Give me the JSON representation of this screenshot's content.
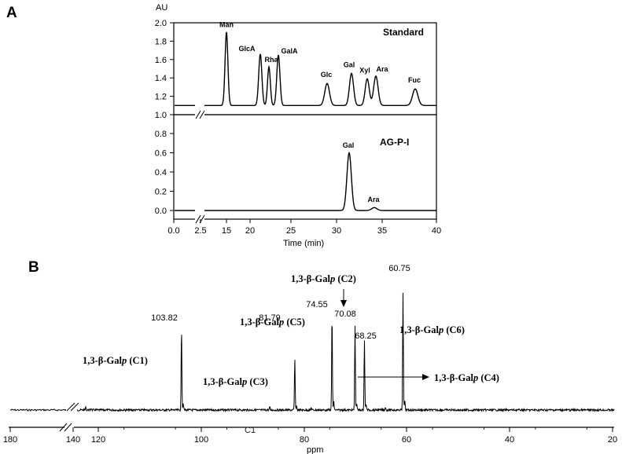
{
  "panels": {
    "a": "A",
    "b": "B"
  },
  "chart_data": [
    {
      "type": "line",
      "panel": "A",
      "subplot": "Standard",
      "ylabel": "AU",
      "ylim": [
        1.0,
        2.0
      ],
      "yticks": [
        "1.0",
        "1.2",
        "1.4",
        "1.6",
        "1.8",
        "2.0"
      ],
      "xlim": [
        0,
        40
      ],
      "baseline": 1.1,
      "series_label": "Standard",
      "peaks": [
        {
          "label": "Man",
          "x": 14.6,
          "y": 1.9
        },
        {
          "label": "GlcA",
          "x": 18.7,
          "y": 1.66
        },
        {
          "label": "Rha",
          "x": 19.7,
          "y": 1.52
        },
        {
          "label": "GalA",
          "x": 21.1,
          "y": 1.65
        },
        {
          "label": "Glc",
          "x": 26.8,
          "y": 1.34
        },
        {
          "label": "Gal",
          "x": 29.6,
          "y": 1.45
        },
        {
          "label": "Xyl",
          "x": 31.5,
          "y": 1.39
        },
        {
          "label": "Ara",
          "x": 32.6,
          "y": 1.42
        },
        {
          "label": "Fuc",
          "x": 37.4,
          "y": 1.28
        }
      ]
    },
    {
      "type": "line",
      "panel": "A",
      "subplot": "AG-P-I",
      "ylim": [
        -0.05,
        1.0
      ],
      "yticks": [
        "0.0",
        "0.2",
        "0.4",
        "0.6",
        "0.8",
        "1.0"
      ],
      "xlim": [
        0,
        40
      ],
      "xticks": [
        "0.0",
        "2.5",
        "15",
        "20",
        "25",
        "30",
        "35",
        "40"
      ],
      "xlabel": "Time (min)",
      "baseline": 0.0,
      "series_label": "AG-P-I",
      "peaks": [
        {
          "label": "Gal",
          "x": 29.4,
          "y": 0.6
        },
        {
          "label": "Ara",
          "x": 32.6,
          "y": 0.03
        }
      ]
    },
    {
      "type": "line",
      "panel": "B",
      "xlabel": "ppm",
      "xlim": [
        180,
        20
      ],
      "xticks": [
        "180",
        "140",
        "120",
        "100",
        "80",
        "60",
        "40",
        "20"
      ],
      "axis_annotation": "C1",
      "peaks": [
        {
          "value": "103.82",
          "x": 103.82,
          "height": 0.7
        },
        {
          "value": "81.79",
          "x": 81.79,
          "height": 0.44
        },
        {
          "value": "74.55",
          "x": 74.55,
          "height": 0.82
        },
        {
          "value": "70.08",
          "x": 70.08,
          "height": 0.71
        },
        {
          "value": "68.25",
          "x": 68.25,
          "height": 0.6
        },
        {
          "value": "60.75",
          "x": 60.75,
          "height": 1.0
        }
      ],
      "assignments": [
        {
          "prefix": "1,3-β-Gal",
          "italic": "p",
          "suffix": " (C1)"
        },
        {
          "prefix": "1,3-β-Gal",
          "italic": "p",
          "suffix": " (C3)"
        },
        {
          "prefix": "1,3-β-Gal",
          "italic": "p",
          "suffix": " (C5)"
        },
        {
          "prefix": "1,3-β-Gal",
          "italic": "p",
          "suffix": " (C2)"
        },
        {
          "prefix": "1,3-β-Gal",
          "italic": "p",
          "suffix": " (C6)"
        },
        {
          "prefix": "1,3-β-Gal",
          "italic": "p",
          "suffix": " (C4)"
        }
      ]
    }
  ]
}
